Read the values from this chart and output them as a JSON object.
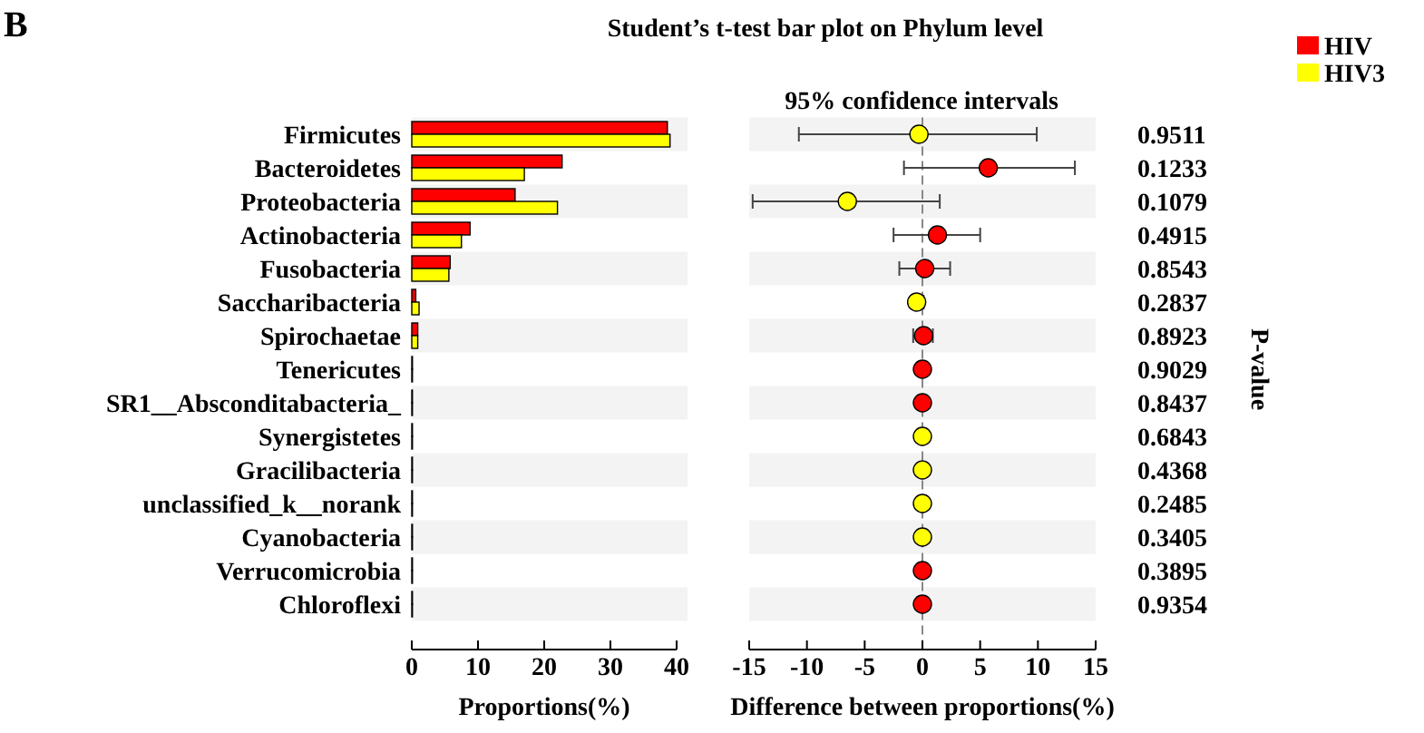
{
  "chart_data": [
    {
      "type": "bar",
      "orientation": "horizontal",
      "title": "Student’s t-test bar plot on Phylum level",
      "annotations": [
        "B"
      ],
      "xlabel": "Proportions(%)",
      "legend": "top right",
      "categories": [
        "Firmicutes",
        "Bacteroidetes",
        "Proteobacteria",
        "Actinobacteria",
        "Fusobacteria",
        "Saccharibacteria",
        "Spirochaetae",
        "Tenericutes",
        "SR1__Absconditabacteria_",
        "Synergistetes",
        "Gracilibacteria",
        "unclassified_k__norank",
        "Cyanobacteria",
        "Verrucomicrobia",
        "Chloroflexi"
      ],
      "series": [
        {
          "name": "HIV",
          "color": "#ff0000",
          "values": [
            38.6,
            22.7,
            15.6,
            8.8,
            5.8,
            0.6,
            0.9,
            0.1,
            0.1,
            0.1,
            0.1,
            0.1,
            0.1,
            0.1,
            0.1
          ]
        },
        {
          "name": "HIV3",
          "color": "#ffff00",
          "values": [
            39.0,
            17.0,
            22.0,
            7.5,
            5.6,
            1.1,
            0.9,
            0.1,
            0.1,
            0.1,
            0.1,
            0.1,
            0.1,
            0.1,
            0.1
          ]
        }
      ],
      "xlim": [
        0,
        40
      ],
      "xticks": [
        0,
        10,
        20,
        30,
        40
      ]
    },
    {
      "type": "scatter",
      "orientation": "horizontal",
      "title": "95% confidence intervals",
      "xlabel": "Difference between proportions(%)",
      "y2label": "P-value",
      "marker": "circle",
      "y2_categories": [
        "0.9511",
        "0.1233",
        "0.1079",
        "0.4915",
        "0.8543",
        "0.2837",
        "0.8923",
        "0.9029",
        "0.8437",
        "0.6843",
        "0.4368",
        "0.2485",
        "0.3405",
        "0.3895",
        "0.9354"
      ],
      "values": [
        -0.3,
        5.7,
        -6.5,
        1.3,
        0.2,
        -0.5,
        0.1,
        0,
        0,
        0,
        0,
        0,
        0,
        0,
        0
      ],
      "errors": [
        [
          -10.7,
          9.9
        ],
        [
          -1.6,
          13.2
        ],
        [
          -14.7,
          1.5
        ],
        [
          -2.5,
          5.0
        ],
        [
          -2.0,
          2.4
        ],
        [
          -1.0,
          0.1
        ],
        [
          -0.8,
          0.9
        ],
        [
          -0.2,
          0.2
        ],
        [
          -0.2,
          0.2
        ],
        [
          -0.2,
          0.2
        ],
        [
          -0.2,
          0.2
        ],
        [
          -0.2,
          0.2
        ],
        [
          -0.2,
          0.2
        ],
        [
          -0.2,
          0.2
        ],
        [
          -0.2,
          0.2
        ]
      ],
      "colors": [
        "#ffff00",
        "#ff0000",
        "#ffff00",
        "#ff0000",
        "#ff0000",
        "#ffff00",
        "#ff0000",
        "#ff0000",
        "#ff0000",
        "#ffff00",
        "#ffff00",
        "#ffff00",
        "#ffff00",
        "#ff0000",
        "#ff0000"
      ],
      "ref_lines": [
        {
          "axis": "x",
          "value": 0,
          "line_style": "dashed"
        }
      ],
      "xlim": [
        -15,
        15
      ],
      "xticks": [
        -15,
        -10,
        -5,
        0,
        5,
        10,
        15
      ]
    }
  ]
}
